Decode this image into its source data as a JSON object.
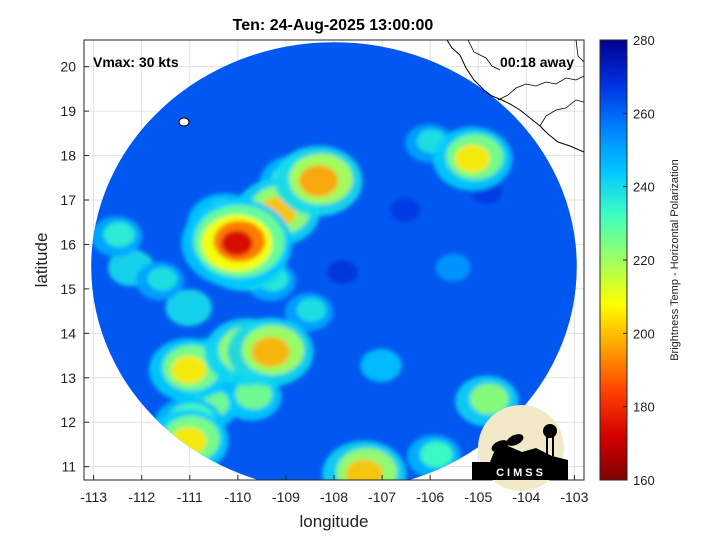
{
  "chart_data": {
    "type": "heatmap",
    "title": "Ten: 24-Aug-2025 13:00:00",
    "xlabel": "longitude",
    "ylabel": "latitude",
    "xlim": [
      -113.2,
      -102.8
    ],
    "ylim": [
      10.7,
      20.6
    ],
    "xticks": [
      "-113",
      "-112",
      "-111",
      "-110",
      "-109",
      "-108",
      "-107",
      "-106",
      "-105",
      "-104",
      "-103"
    ],
    "yticks": [
      "11",
      "12",
      "13",
      "14",
      "15",
      "16",
      "17",
      "18",
      "19",
      "20"
    ],
    "grid": true,
    "annotations": {
      "vmax": "Vmax: 30 kts",
      "away": "00:18 away"
    },
    "colorbar": {
      "label": "Brightness Temp - Horizontal Polarization",
      "range": [
        160,
        280
      ],
      "ticks": [
        "160",
        "180",
        "200",
        "220",
        "240",
        "260",
        "280"
      ],
      "colors": [
        "#800000",
        "#d40000",
        "#ff4000",
        "#ffa000",
        "#ffff00",
        "#a0ff60",
        "#40ffc0",
        "#00c8ff",
        "#0080ff",
        "#0030e0",
        "#00008f"
      ]
    },
    "swath": {
      "center_lon": -108.0,
      "center_lat": 15.5,
      "radius_deg": 5.05,
      "background_temp": 262
    },
    "cold_features": [
      {
        "lon": -110.0,
        "lat": 16.05,
        "temp": 172
      },
      {
        "lon": -109.85,
        "lat": 15.75,
        "temp": 198
      },
      {
        "lon": -110.25,
        "lat": 16.5,
        "temp": 210
      },
      {
        "lon": -109.15,
        "lat": 16.75,
        "temp": 200
      },
      {
        "lon": -108.3,
        "lat": 17.45,
        "temp": 196
      },
      {
        "lon": -108.8,
        "lat": 17.4,
        "temp": 215
      },
      {
        "lon": -109.8,
        "lat": 13.6,
        "temp": 200
      },
      {
        "lon": -109.3,
        "lat": 13.6,
        "temp": 198
      },
      {
        "lon": -110.5,
        "lat": 13.3,
        "temp": 215
      },
      {
        "lon": -111.0,
        "lat": 13.2,
        "temp": 205
      },
      {
        "lon": -109.7,
        "lat": 12.6,
        "temp": 225
      },
      {
        "lon": -110.6,
        "lat": 12.4,
        "temp": 225
      },
      {
        "lon": -111.0,
        "lat": 11.95,
        "temp": 215
      },
      {
        "lon": -111.0,
        "lat": 11.6,
        "temp": 205
      },
      {
        "lon": -107.35,
        "lat": 10.85,
        "temp": 200
      },
      {
        "lon": -105.1,
        "lat": 17.95,
        "temp": 205
      },
      {
        "lon": -104.8,
        "lat": 12.5,
        "temp": 222
      },
      {
        "lon": -105.9,
        "lat": 11.25,
        "temp": 232
      },
      {
        "lon": -112.2,
        "lat": 15.5,
        "temp": 240
      },
      {
        "lon": -111.6,
        "lat": 15.2,
        "temp": 238
      },
      {
        "lon": -112.5,
        "lat": 16.2,
        "temp": 235
      },
      {
        "lon": -111.0,
        "lat": 14.6,
        "temp": 240
      },
      {
        "lon": -109.3,
        "lat": 15.2,
        "temp": 236
      },
      {
        "lon": -108.5,
        "lat": 14.5,
        "temp": 238
      },
      {
        "lon": -106.0,
        "lat": 18.3,
        "temp": 238
      },
      {
        "lon": -107.0,
        "lat": 13.3,
        "temp": 245
      },
      {
        "lon": -105.5,
        "lat": 15.5,
        "temp": 252
      }
    ],
    "warm_features": [
      {
        "lon": -107.8,
        "lat": 15.4,
        "temp": 270
      },
      {
        "lon": -106.5,
        "lat": 16.8,
        "temp": 268
      },
      {
        "lon": -104.8,
        "lat": 17.2,
        "temp": 268
      }
    ]
  },
  "logo": {
    "text": "CIMSS"
  }
}
